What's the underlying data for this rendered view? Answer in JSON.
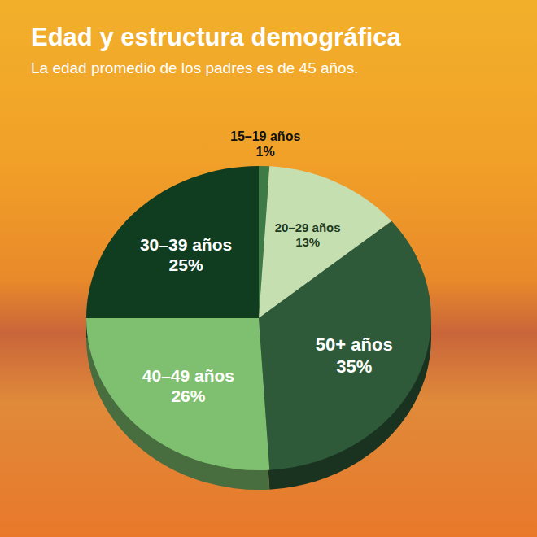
{
  "chart_data": {
    "type": "pie",
    "title": "Edad y estructura demográfica",
    "subtitle": "La edad promedio de los padres es de 45 años.",
    "categories": [
      "15–19 años",
      "20–29 años",
      "50+ años",
      "40–49 años",
      "30–39 años"
    ],
    "values": [
      1,
      13,
      35,
      26,
      25
    ],
    "value_labels": [
      "1%",
      "13%",
      "35%",
      "26%",
      "25%"
    ],
    "colors": [
      "#3d7a45",
      "#c5dfb0",
      "#2e5a3a",
      "#7fc070",
      "#103c20"
    ],
    "data_labels": true
  }
}
